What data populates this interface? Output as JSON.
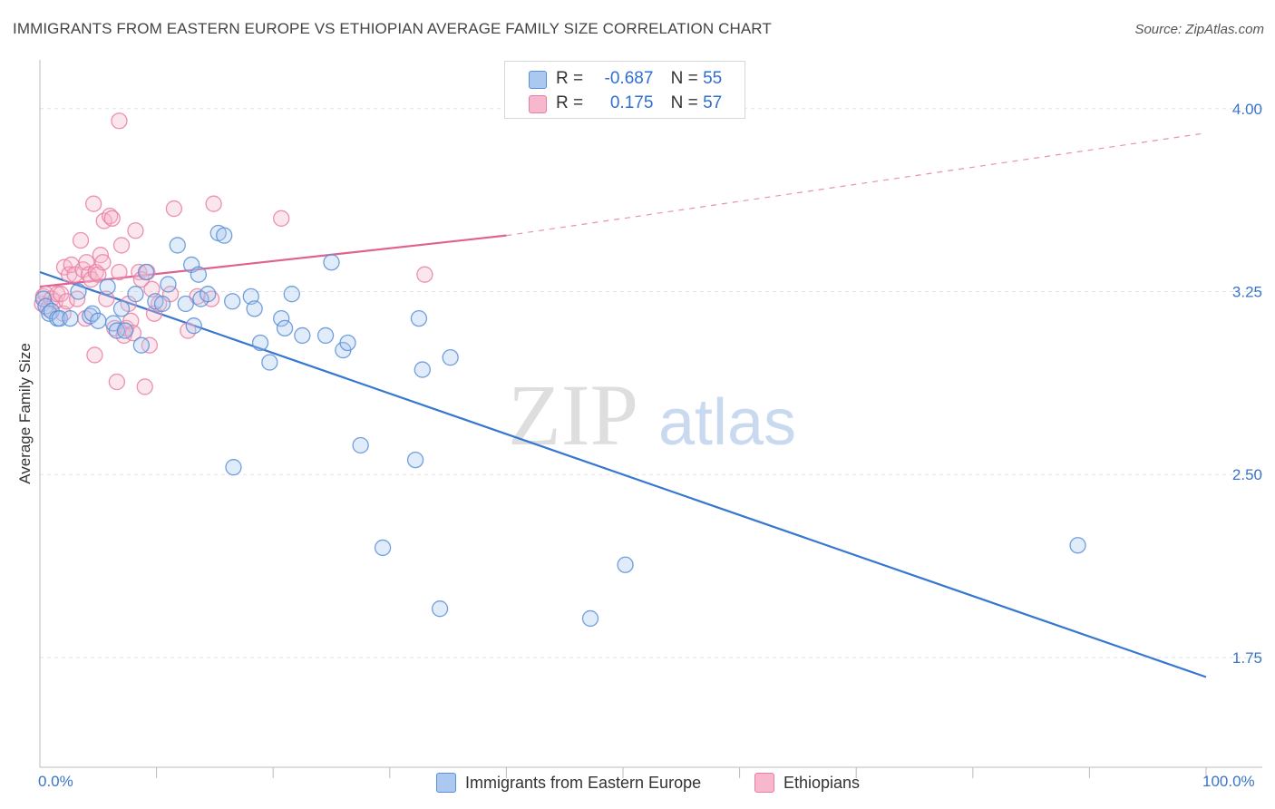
{
  "title": "IMMIGRANTS FROM EASTERN EUROPE VS ETHIOPIAN AVERAGE FAMILY SIZE CORRELATION CHART",
  "source": "Source: ZipAtlas.com",
  "watermark": {
    "zip": "ZIP",
    "atlas": "atlas"
  },
  "legend_top": {
    "row1": {
      "r_label": "R =",
      "r_value": "-0.687",
      "n_label": "N =",
      "n_value": "55"
    },
    "row2": {
      "r_label": "R =",
      "r_value": "0.175",
      "n_label": "N =",
      "n_value": "57"
    }
  },
  "colors": {
    "blue": "#5b8fd6",
    "blue_fill": "#aac8f0",
    "pink": "#e77fa4",
    "pink_fill": "#f7b7cc",
    "blue_line": "#3677d0",
    "pink_line": "#e0628f"
  },
  "chart_data": {
    "type": "scatter",
    "title": "IMMIGRANTS FROM EASTERN EUROPE VS ETHIOPIAN AVERAGE FAMILY SIZE CORRELATION CHART",
    "xlabel": "",
    "ylabel": "Average Family Size",
    "xlim": [
      0,
      100
    ],
    "ylim": [
      1.3,
      4.2
    ],
    "x_tick_labels": [
      "0.0%",
      "100.0%"
    ],
    "y_ticks": [
      1.75,
      2.5,
      3.25,
      4.0
    ],
    "y_tick_labels": [
      "1.75",
      "2.50",
      "3.25",
      "4.00"
    ],
    "series": [
      {
        "name": "Immigrants from Eastern Europe",
        "color": "#5b8fd6",
        "trend": {
          "x0": 0,
          "y0": 3.33,
          "x1": 100,
          "y1": 1.67
        },
        "points": [
          [
            0.3,
            3.22
          ],
          [
            0.5,
            3.19
          ],
          [
            0.8,
            3.16
          ],
          [
            1.0,
            3.17
          ],
          [
            1.5,
            3.14
          ],
          [
            1.7,
            3.14
          ],
          [
            2.6,
            3.14
          ],
          [
            3.3,
            3.25
          ],
          [
            4.3,
            3.15
          ],
          [
            4.5,
            3.16
          ],
          [
            5.0,
            3.13
          ],
          [
            5.8,
            3.27
          ],
          [
            6.3,
            3.12
          ],
          [
            6.6,
            3.09
          ],
          [
            7.0,
            3.18
          ],
          [
            7.3,
            3.09
          ],
          [
            8.2,
            3.24
          ],
          [
            8.7,
            3.03
          ],
          [
            9.1,
            3.33
          ],
          [
            9.9,
            3.21
          ],
          [
            10.5,
            3.2
          ],
          [
            11.0,
            3.28
          ],
          [
            11.8,
            3.44
          ],
          [
            12.5,
            3.2
          ],
          [
            13.0,
            3.36
          ],
          [
            13.2,
            3.11
          ],
          [
            13.6,
            3.32
          ],
          [
            13.8,
            3.22
          ],
          [
            14.4,
            3.24
          ],
          [
            15.3,
            3.49
          ],
          [
            15.8,
            3.48
          ],
          [
            16.5,
            3.21
          ],
          [
            16.6,
            2.53
          ],
          [
            18.1,
            3.23
          ],
          [
            18.4,
            3.18
          ],
          [
            18.9,
            3.04
          ],
          [
            19.7,
            2.96
          ],
          [
            20.7,
            3.14
          ],
          [
            21.0,
            3.1
          ],
          [
            21.6,
            3.24
          ],
          [
            22.5,
            3.07
          ],
          [
            24.5,
            3.07
          ],
          [
            25.0,
            3.37
          ],
          [
            26.0,
            3.01
          ],
          [
            26.4,
            3.04
          ],
          [
            27.5,
            2.62
          ],
          [
            29.4,
            2.2
          ],
          [
            32.2,
            2.56
          ],
          [
            32.5,
            3.14
          ],
          [
            32.8,
            2.93
          ],
          [
            34.3,
            1.95
          ],
          [
            35.2,
            2.98
          ],
          [
            47.2,
            1.91
          ],
          [
            50.2,
            2.13
          ],
          [
            89.0,
            2.21
          ]
        ]
      },
      {
        "name": "Ethiopians",
        "color": "#e77fa4",
        "trend": {
          "x0": 0,
          "y0": 3.27,
          "x1": 40,
          "y1": 3.48,
          "dash_x1": 100,
          "dash_y1": 3.9
        },
        "points": [
          [
            0.2,
            3.2
          ],
          [
            0.3,
            3.23
          ],
          [
            0.5,
            3.24
          ],
          [
            0.7,
            3.18
          ],
          [
            1.0,
            3.22
          ],
          [
            1.3,
            3.21
          ],
          [
            1.5,
            3.24
          ],
          [
            1.8,
            3.24
          ],
          [
            2.0,
            3.16
          ],
          [
            2.1,
            3.35
          ],
          [
            2.3,
            3.21
          ],
          [
            2.5,
            3.32
          ],
          [
            2.7,
            3.36
          ],
          [
            3.0,
            3.32
          ],
          [
            3.2,
            3.22
          ],
          [
            3.5,
            3.46
          ],
          [
            3.7,
            3.34
          ],
          [
            3.9,
            3.14
          ],
          [
            4.0,
            3.37
          ],
          [
            4.2,
            3.32
          ],
          [
            4.4,
            3.3
          ],
          [
            4.6,
            3.61
          ],
          [
            4.7,
            2.99
          ],
          [
            4.8,
            3.33
          ],
          [
            5.0,
            3.32
          ],
          [
            5.2,
            3.4
          ],
          [
            5.4,
            3.37
          ],
          [
            5.5,
            3.54
          ],
          [
            5.7,
            3.22
          ],
          [
            6.0,
            3.56
          ],
          [
            6.2,
            3.55
          ],
          [
            6.4,
            3.1
          ],
          [
            6.6,
            2.88
          ],
          [
            6.8,
            3.33
          ],
          [
            7.0,
            3.44
          ],
          [
            7.2,
            3.07
          ],
          [
            7.4,
            3.1
          ],
          [
            7.6,
            3.2
          ],
          [
            7.8,
            3.13
          ],
          [
            8.0,
            3.08
          ],
          [
            8.2,
            3.5
          ],
          [
            8.5,
            3.33
          ],
          [
            8.7,
            3.3
          ],
          [
            9.0,
            2.86
          ],
          [
            9.2,
            3.33
          ],
          [
            9.4,
            3.03
          ],
          [
            9.6,
            3.26
          ],
          [
            9.8,
            3.16
          ],
          [
            10.2,
            3.2
          ],
          [
            11.2,
            3.24
          ],
          [
            11.5,
            3.59
          ],
          [
            12.7,
            3.09
          ],
          [
            13.5,
            3.23
          ],
          [
            14.7,
            3.22
          ],
          [
            14.9,
            3.61
          ],
          [
            20.7,
            3.55
          ],
          [
            33.0,
            3.32
          ]
        ]
      }
    ],
    "outlier_points": {
      "Immigrants from Eastern Europe": [],
      "Ethiopians": [
        [
          6.8,
          3.95
        ]
      ]
    }
  },
  "bottom_legend": {
    "blue_label": "Immigrants from Eastern Europe",
    "pink_label": "Ethiopians"
  }
}
